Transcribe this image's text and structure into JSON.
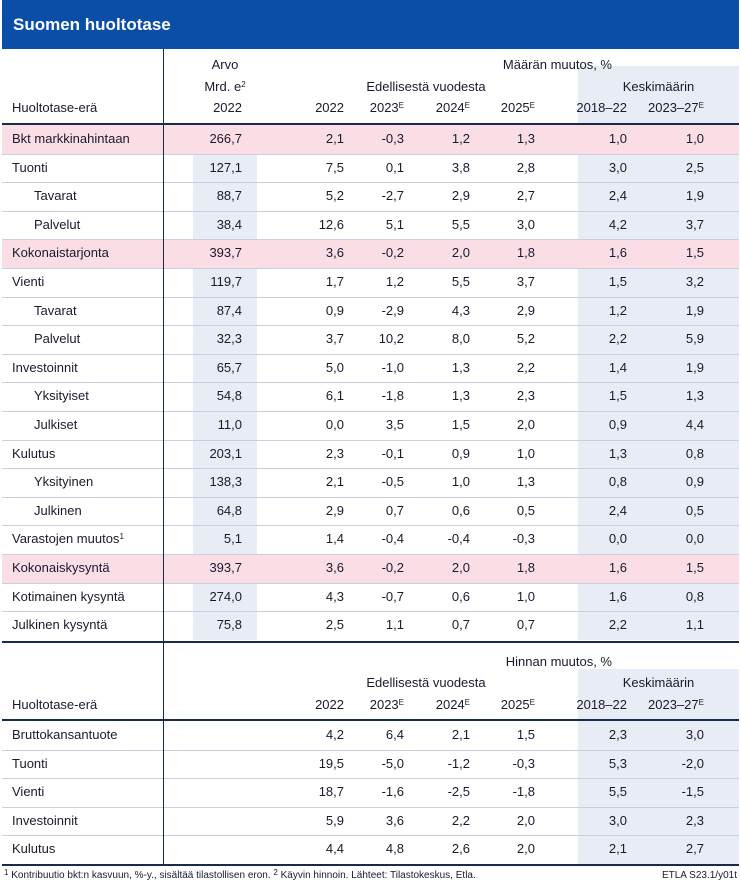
{
  "title": "Suomen huoltotase",
  "table1": {
    "hdr_arvo": "Arvo",
    "hdr_mrd": "Mrd. e",
    "hdr_mrd_sup": "2",
    "hdr_maaran": "Määrän muutos, %",
    "hdr_edellisesta": "Edellisestä vuodesta",
    "hdr_keskimaarin": "Keskimäärin",
    "hdr_erä": "Huoltotase-erä",
    "years": [
      "2022",
      "2022",
      "2023",
      "2024",
      "2025",
      "2018–22",
      "2023–27"
    ],
    "years_sup": [
      "",
      "",
      "E",
      "E",
      "E",
      "",
      "E"
    ],
    "rows": [
      {
        "label": "Bkt markkinahintaan",
        "sup": "",
        "indent": false,
        "v": [
          "266,7",
          "2,1",
          "-0,3",
          "1,2",
          "1,3",
          "1,0",
          "1,0"
        ]
      },
      {
        "label": "Tuonti",
        "sup": "",
        "indent": false,
        "v": [
          "127,1",
          "7,5",
          "0,1",
          "3,8",
          "2,8",
          "3,0",
          "2,5"
        ]
      },
      {
        "label": "Tavarat",
        "sup": "",
        "indent": true,
        "v": [
          "88,7",
          "5,2",
          "-2,7",
          "2,9",
          "2,7",
          "2,4",
          "1,9"
        ]
      },
      {
        "label": "Palvelut",
        "sup": "",
        "indent": true,
        "v": [
          "38,4",
          "12,6",
          "5,1",
          "5,5",
          "3,0",
          "4,2",
          "3,7"
        ]
      },
      {
        "label": "Kokonaistarjonta",
        "sup": "",
        "indent": false,
        "v": [
          "393,7",
          "3,6",
          "-0,2",
          "2,0",
          "1,8",
          "1,6",
          "1,5"
        ]
      },
      {
        "label": "Vienti",
        "sup": "",
        "indent": false,
        "v": [
          "119,7",
          "1,7",
          "1,2",
          "5,5",
          "3,7",
          "1,5",
          "3,2"
        ]
      },
      {
        "label": "Tavarat",
        "sup": "",
        "indent": true,
        "v": [
          "87,4",
          "0,9",
          "-2,9",
          "4,3",
          "2,9",
          "1,2",
          "1,9"
        ]
      },
      {
        "label": "Palvelut",
        "sup": "",
        "indent": true,
        "v": [
          "32,3",
          "3,7",
          "10,2",
          "8,0",
          "5,2",
          "2,2",
          "5,9"
        ]
      },
      {
        "label": "Investoinnit",
        "sup": "",
        "indent": false,
        "v": [
          "65,7",
          "5,0",
          "-1,0",
          "1,3",
          "2,2",
          "1,4",
          "1,9"
        ]
      },
      {
        "label": "Yksityiset",
        "sup": "",
        "indent": true,
        "v": [
          "54,8",
          "6,1",
          "-1,8",
          "1,3",
          "2,3",
          "1,5",
          "1,3"
        ]
      },
      {
        "label": "Julkiset",
        "sup": "",
        "indent": true,
        "v": [
          "11,0",
          "0,0",
          "3,5",
          "1,5",
          "2,0",
          "0,9",
          "4,4"
        ]
      },
      {
        "label": "Kulutus",
        "sup": "",
        "indent": false,
        "v": [
          "203,1",
          "2,3",
          "-0,1",
          "0,9",
          "1,0",
          "1,3",
          "0,8"
        ]
      },
      {
        "label": "Yksityinen",
        "sup": "",
        "indent": true,
        "v": [
          "138,3",
          "2,1",
          "-0,5",
          "1,0",
          "1,3",
          "0,8",
          "0,9"
        ]
      },
      {
        "label": "Julkinen",
        "sup": "",
        "indent": true,
        "v": [
          "64,8",
          "2,9",
          "0,7",
          "0,6",
          "0,5",
          "2,4",
          "0,5"
        ]
      },
      {
        "label": "Varastojen muutos",
        "sup": "1",
        "indent": false,
        "v": [
          "5,1",
          "1,4",
          "-0,4",
          "-0,4",
          "-0,3",
          "0,0",
          "0,0"
        ]
      },
      {
        "label": "Kokonaiskysyntä",
        "sup": "",
        "indent": false,
        "v": [
          "393,7",
          "3,6",
          "-0,2",
          "2,0",
          "1,8",
          "1,6",
          "1,5"
        ]
      },
      {
        "label": "Kotimainen kysyntä",
        "sup": "",
        "indent": false,
        "v": [
          "274,0",
          "4,3",
          "-0,7",
          "0,6",
          "1,0",
          "1,6",
          "0,8"
        ]
      },
      {
        "label": "Julkinen kysyntä",
        "sup": "",
        "indent": false,
        "v": [
          "75,8",
          "2,5",
          "1,1",
          "0,7",
          "0,7",
          "2,2",
          "1,1"
        ]
      }
    ],
    "highlight_color": "#fbdde5",
    "shade_color": "#e8ecf4"
  },
  "table2": {
    "hdr_hinnan": "Hinnan muutos, %",
    "hdr_edellisesta": "Edellisestä vuodesta",
    "hdr_keskimaarin": "Keskimäärin",
    "hdr_erä": "Huoltotase-erä",
    "years": [
      "2022",
      "2023",
      "2024",
      "2025",
      "2018–22",
      "2023–27"
    ],
    "years_sup": [
      "",
      "E",
      "E",
      "E",
      "",
      "E"
    ],
    "rows": [
      {
        "label": "Bruttokansantuote",
        "v": [
          "4,2",
          "6,4",
          "2,1",
          "1,5",
          "2,3",
          "3,0"
        ]
      },
      {
        "label": "Tuonti",
        "v": [
          "19,5",
          "-5,0",
          "-1,2",
          "-0,3",
          "5,3",
          "-2,0"
        ]
      },
      {
        "label": "Vienti",
        "v": [
          "18,7",
          "-1,6",
          "-2,5",
          "-1,8",
          "5,5",
          "-1,5"
        ]
      },
      {
        "label": "Investoinnit",
        "v": [
          "5,9",
          "3,6",
          "2,2",
          "2,0",
          "3,0",
          "2,3"
        ]
      },
      {
        "label": "Kulutus",
        "v": [
          "4,4",
          "4,8",
          "2,6",
          "2,0",
          "2,1",
          "2,7"
        ]
      }
    ]
  },
  "footnotes": {
    "note1_num": "1",
    "note1": "Kontribuutio bkt:n kasvuun, %-y., sisältää tilastollisen eron.",
    "note2_num": "2",
    "note2": "Käyvin hinnoin. Lähteet: Tilastokeskus, Etla.",
    "code": "ETLA S23.1/y01t"
  },
  "colors": {
    "title_bg": "#0a4ea8"
  }
}
